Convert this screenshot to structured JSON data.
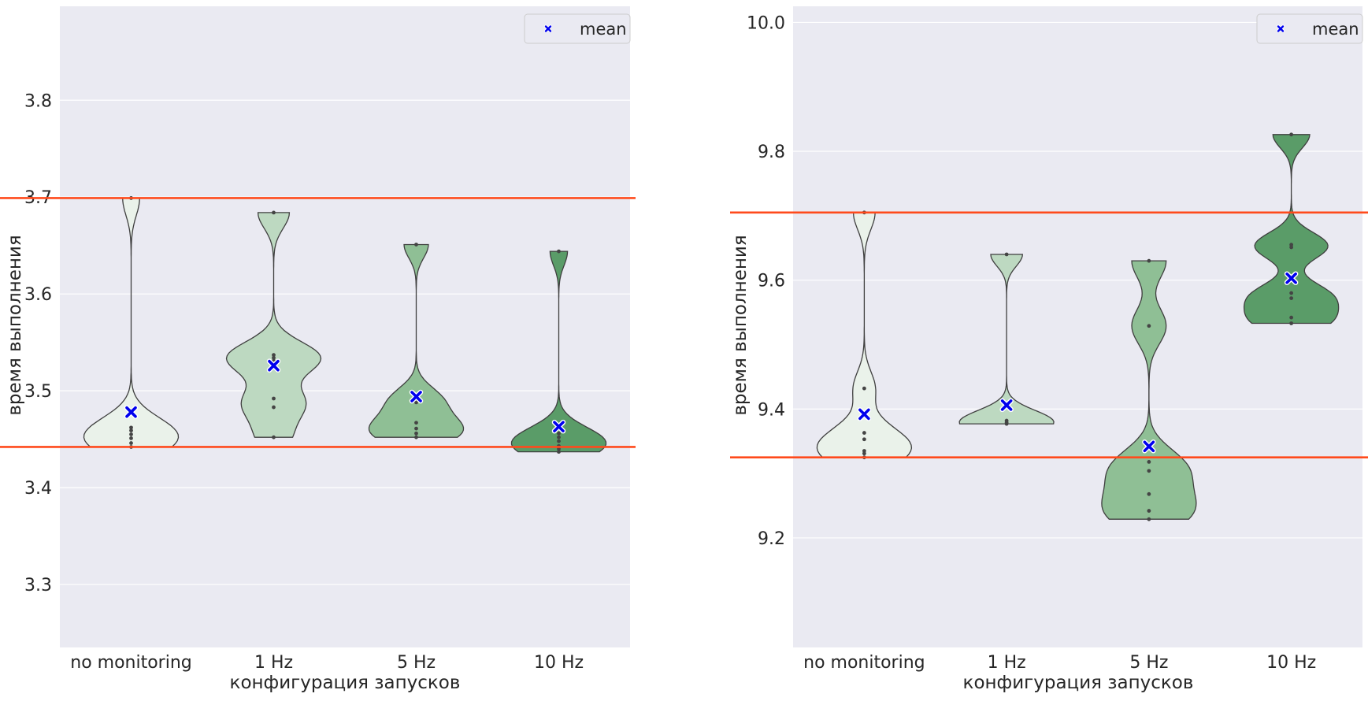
{
  "chart_data": [
    {
      "type": "violin",
      "xlabel": "конфигурация запусков",
      "ylabel": "время выполнения",
      "categories": [
        "no monitoring",
        "1 Hz",
        "5 Hz",
        "10 Hz"
      ],
      "ylim": [
        3.235,
        3.897
      ],
      "yticks": [
        "3.3",
        "3.4",
        "3.5",
        "3.6",
        "3.7",
        "3.8"
      ],
      "grid": true,
      "legend": {
        "position": "top-right",
        "entries": [
          "mean"
        ]
      },
      "reference_lines": [
        3.699,
        3.442
      ],
      "means": [
        3.478,
        3.526,
        3.494,
        3.463
      ],
      "points": [
        [
          3.442,
          3.446,
          3.451,
          3.455,
          3.459,
          3.462,
          3.699
        ],
        [
          3.452,
          3.483,
          3.492,
          3.531,
          3.534,
          3.537,
          3.684
        ],
        [
          3.452,
          3.456,
          3.461,
          3.467,
          3.488,
          3.493,
          3.651
        ],
        [
          3.437,
          3.44,
          3.443,
          3.448,
          3.452,
          3.456,
          3.644
        ]
      ],
      "colors": [
        "#eaf2ea",
        "#bdd9c1",
        "#8fbf95",
        "#5a9c68"
      ]
    },
    {
      "type": "violin",
      "xlabel": "конфигурация запусков",
      "ylabel": "время выполнения",
      "categories": [
        "no monitoring",
        "1 Hz",
        "5 Hz",
        "10 Hz"
      ],
      "ylim": [
        9.03,
        10.025
      ],
      "yticks": [
        "9.2",
        "9.4",
        "9.6",
        "9.8",
        "10.0"
      ],
      "grid": true,
      "legend": {
        "position": "top-right",
        "entries": [
          "mean"
        ]
      },
      "reference_lines": [
        9.705,
        9.325
      ],
      "means": [
        9.392,
        9.406,
        9.342,
        9.603
      ],
      "points": [
        [
          9.325,
          9.331,
          9.335,
          9.353,
          9.363,
          9.432,
          9.705
        ],
        [
          9.377,
          9.379,
          9.382,
          9.64
        ],
        [
          9.229,
          9.242,
          9.268,
          9.304,
          9.318,
          9.529,
          9.63
        ],
        [
          9.533,
          9.542,
          9.572,
          9.58,
          9.651,
          9.655,
          9.826
        ]
      ],
      "colors": [
        "#eaf2ea",
        "#bdd9c1",
        "#8fbf95",
        "#5a9c68"
      ]
    }
  ]
}
